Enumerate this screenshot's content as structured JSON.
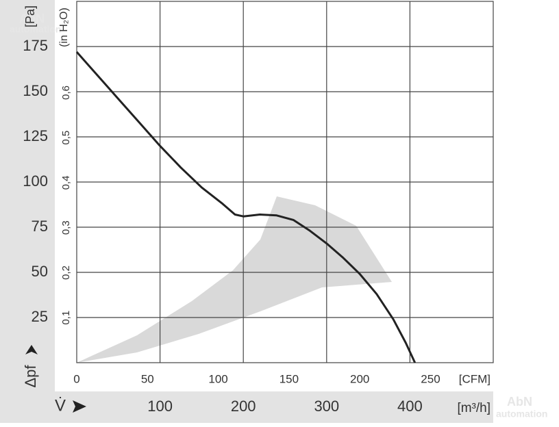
{
  "chart_data": {
    "type": "line",
    "y_label": "[Pa]",
    "y2_label": "(in H₂O)",
    "y_symbol": "Δpf",
    "x_symbol": "V̇",
    "x_label": "[m³/h]",
    "x2_label": "[CFM]",
    "watermark": [
      "AbN",
      "automation"
    ],
    "x": [
      0,
      25,
      50,
      75,
      100,
      125,
      150,
      175,
      190,
      200,
      220,
      240,
      260,
      280,
      300,
      320,
      340,
      360,
      380,
      395,
      406
    ],
    "series": [
      {
        "name": "Δpf",
        "color": "#222222",
        "values": [
          172,
          159,
          146,
          133,
          120,
          108,
          97,
          88,
          82,
          81,
          82,
          81.5,
          79,
          73,
          66,
          58,
          49,
          38,
          24,
          11,
          0
        ]
      }
    ],
    "xlim": [
      0,
      500
    ],
    "xticks": [
      100,
      200,
      300,
      400
    ],
    "xgrid": [
      100,
      200,
      300,
      400
    ],
    "x2lim": [
      0,
      294.3
    ],
    "x2ticks": [
      0,
      50,
      100,
      150,
      200,
      250
    ],
    "ylim": [
      0,
      200
    ],
    "yticks": [
      25,
      50,
      75,
      100,
      125,
      150,
      175
    ],
    "y2lim": [
      0,
      0.803
    ],
    "y2ticks": [
      {
        "value": 0.1,
        "label": "0,1"
      },
      {
        "value": 0.2,
        "label": "0,2"
      },
      {
        "value": 0.3,
        "label": "0,3"
      },
      {
        "value": 0.4,
        "label": "0,4"
      },
      {
        "value": 0.5,
        "label": "0,5"
      },
      {
        "value": 0.6,
        "label": "0,6"
      }
    ],
    "grid": true
  }
}
